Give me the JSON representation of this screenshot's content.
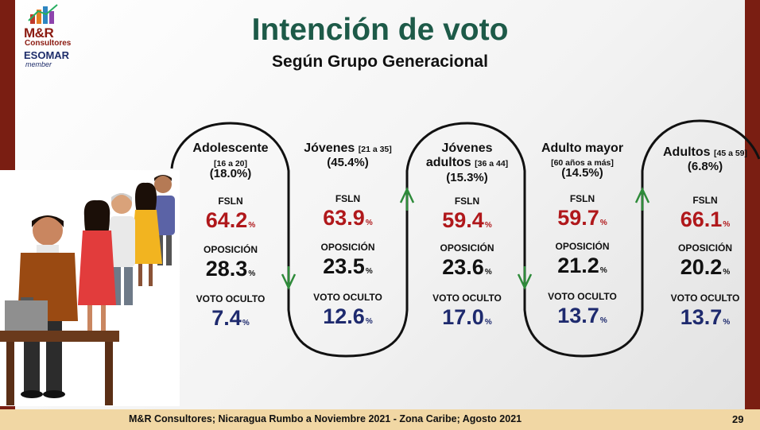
{
  "logo": {
    "brand": "M&R",
    "sub": "Consultores",
    "partner": "ESOMAR",
    "partner_note": "member"
  },
  "title": "Intención de voto",
  "subtitle": "Según Grupo Generacional",
  "labels": {
    "fsln": "FSLN",
    "oposicion": "OPOSICIÓN",
    "oculto": "VOTO OCULTO",
    "unit": "%"
  },
  "groups": [
    {
      "name": "Adolescente",
      "range": "[16 a 20]",
      "share": "(18.0%)",
      "fsln": "64.2",
      "oposicion": "28.3",
      "oculto": "7.4"
    },
    {
      "name": "Jóvenes",
      "range": "[21 a 35]",
      "share": "(45.4%)",
      "fsln": "63.9",
      "oposicion": "23.5",
      "oculto": "12.6"
    },
    {
      "name": "Jóvenes",
      "name2": "adultos",
      "range": "[36 a 44]",
      "share": "(15.3%)",
      "fsln": "59.4",
      "oposicion": "23.6",
      "oculto": "17.0"
    },
    {
      "name": "Adulto mayor",
      "range": "[60 años a más]",
      "share": "(14.5%)",
      "fsln": "59.7",
      "oposicion": "21.2",
      "oculto": "13.7"
    },
    {
      "name": "Adultos",
      "range": "[45 a 59]",
      "share": "(6.8%)",
      "fsln": "66.1",
      "oposicion": "20.2",
      "oculto": "13.7"
    }
  ],
  "footer": "M&R Consultores; Nicaragua Rumbo a Noviembre 2021 - Zona Caribe; Agosto 2021",
  "page_number": "29",
  "chart_data": {
    "type": "table",
    "title": "Intención de voto",
    "subtitle": "Según Grupo Generacional",
    "columns": [
      "Adolescente [16 a 20] (18.0%)",
      "Jóvenes [21 a 35] (45.4%)",
      "Jóvenes adultos [36 a 44] (15.3%)",
      "Adulto mayor [60 años a más] (14.5%)",
      "Adultos [45 a 59] (6.8%)"
    ],
    "rows": [
      {
        "label": "FSLN",
        "values": [
          64.2,
          63.9,
          59.4,
          59.7,
          66.1
        ]
      },
      {
        "label": "OPOSICIÓN",
        "values": [
          28.3,
          23.5,
          23.6,
          21.2,
          20.2
        ]
      },
      {
        "label": "VOTO OCULTO",
        "values": [
          7.4,
          12.6,
          17.0,
          13.7,
          13.7
        ]
      }
    ],
    "colors": {
      "fsln": "#b0181b",
      "oposicion": "#111111",
      "oculto": "#1e2a6e",
      "arrows": "#2e8b3a"
    }
  }
}
